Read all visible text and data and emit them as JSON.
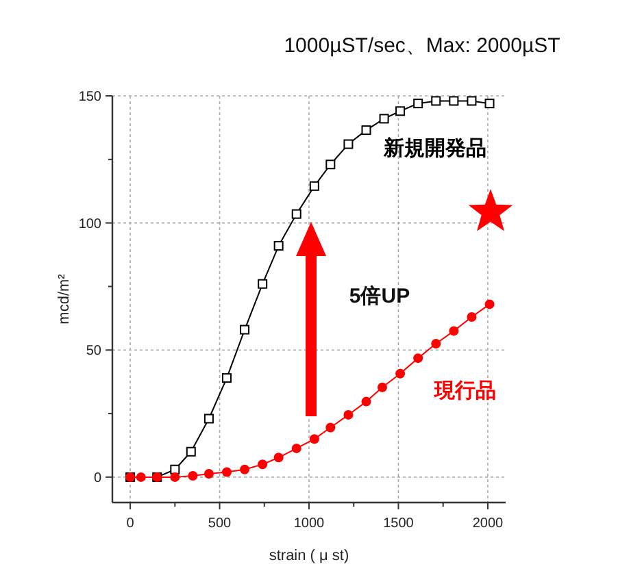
{
  "chart_data": {
    "type": "line",
    "title": "1000µST/sec、Max: 2000µST",
    "xlabel": "strain ( μ st)",
    "ylabel": "mcd/m²",
    "annotations": [
      "5倍UP"
    ],
    "series": [
      {
        "name": "新規開発品",
        "color": "#000000",
        "marker": "square",
        "x": [
          0,
          150,
          250,
          340,
          440,
          540,
          640,
          740,
          830,
          930,
          1030,
          1120,
          1220,
          1320,
          1420,
          1510,
          1610,
          1710,
          1810,
          1910,
          2010
        ],
        "values": [
          0,
          0,
          3,
          10,
          23,
          39,
          58,
          76,
          91,
          103.5,
          114.5,
          123,
          131,
          136.5,
          141,
          144,
          147,
          148,
          148,
          148,
          147
        ]
      },
      {
        "name": "現行品",
        "color": "#ff0000",
        "marker": "circle",
        "x": [
          0,
          60,
          150,
          250,
          350,
          440,
          540,
          640,
          740,
          830,
          930,
          1030,
          1120,
          1220,
          1320,
          1410,
          1510,
          1610,
          1710,
          1810,
          1910,
          2010
        ],
        "values": [
          0,
          0,
          0,
          0,
          0.5,
          1.3,
          2,
          3,
          5,
          7.7,
          11.3,
          15,
          19.5,
          24.5,
          29.7,
          35.3,
          40.7,
          46.8,
          52.5,
          57.5,
          63,
          68
        ]
      }
    ],
    "xlim": [
      -100,
      2100
    ],
    "ylim": [
      -10,
      150
    ],
    "xticks": [
      0,
      {
        "value": 250,
        "label": null
      },
      500,
      {
        "value": 750,
        "label": null
      },
      1000,
      {
        "value": 1250,
        "label": null
      },
      1500,
      {
        "value": 1750,
        "label": null
      },
      2000
    ],
    "yticks": [
      0,
      {
        "value": 25,
        "label": null
      },
      50,
      {
        "value": 75,
        "label": null
      },
      100,
      {
        "value": 125,
        "label": null
      },
      150
    ],
    "grid": true,
    "line_style": "solid"
  }
}
